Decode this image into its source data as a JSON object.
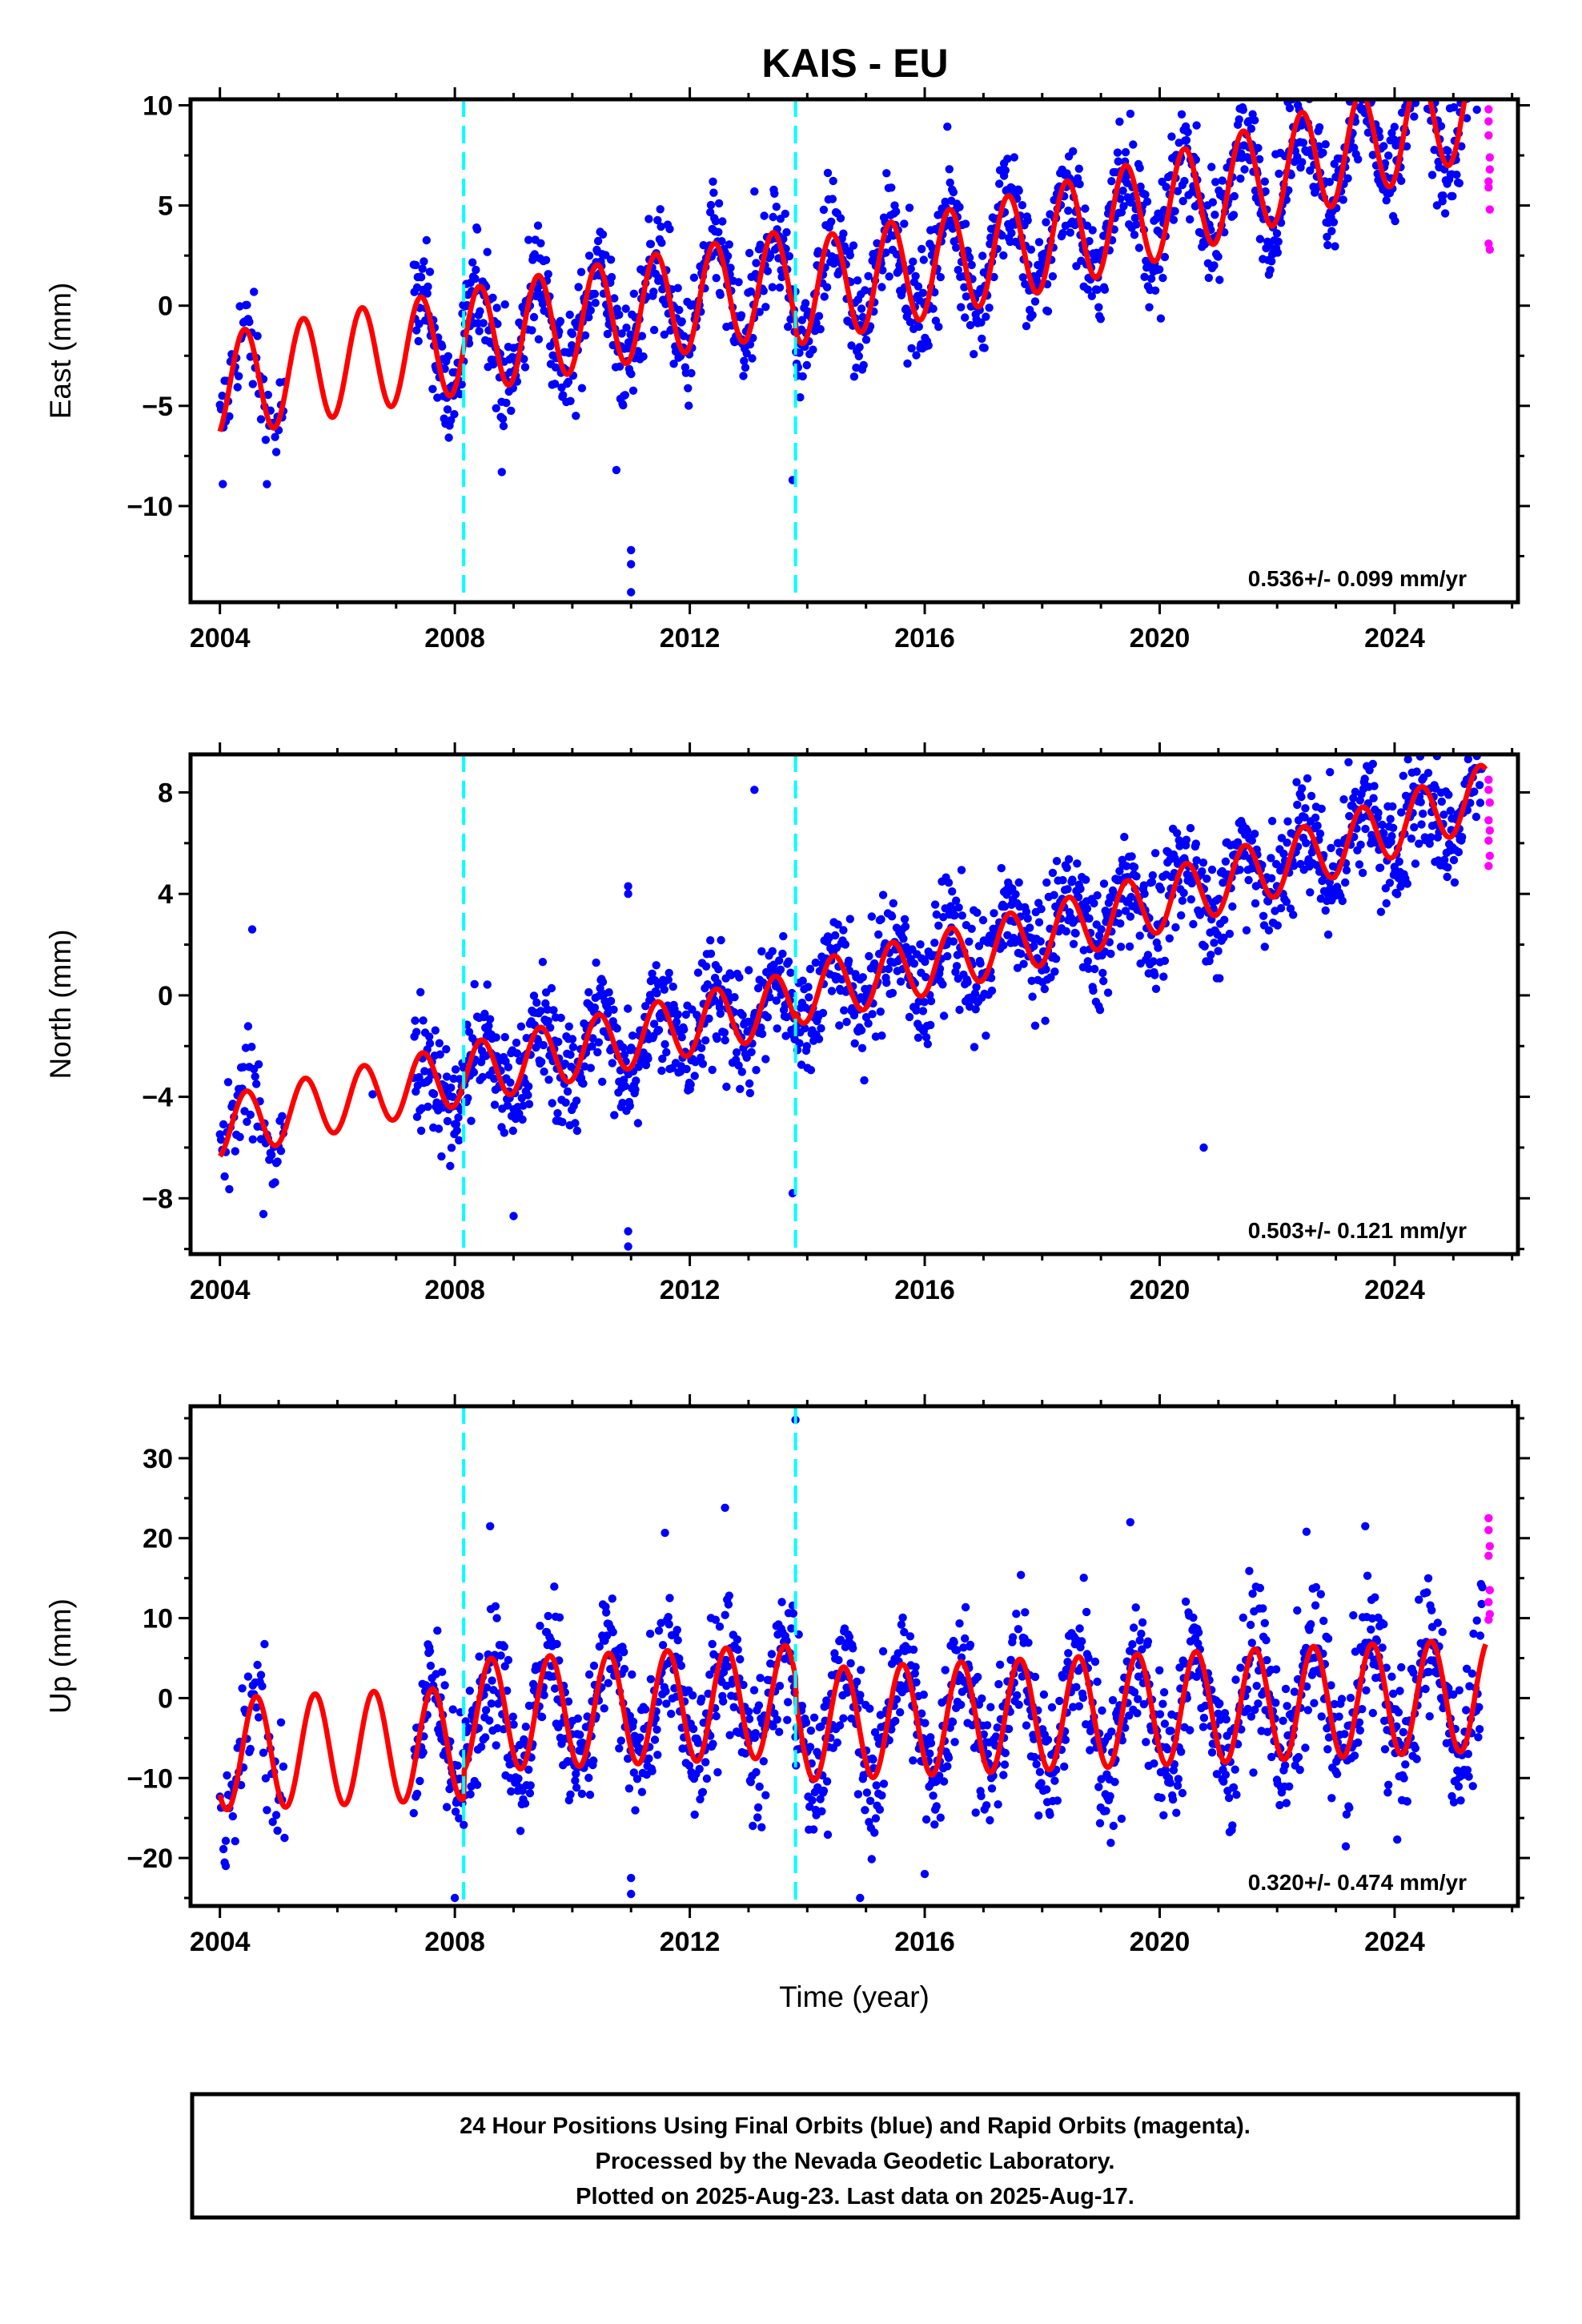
{
  "title": "KAIS - EU",
  "footer": {
    "lines": [
      "24 Hour Positions Using Final Orbits (blue) and Rapid Orbits (magenta).",
      "Processed by the Nevada Geodetic Laboratory.",
      "Plotted on 2025-Aug-23. Last data on 2025-Aug-17."
    ]
  },
  "colors": {
    "final_orbits": "#0000ff",
    "rapid_orbits": "#ff00ff",
    "model_fit": "#ff0000",
    "equipment_change": "#00ffff",
    "axes": "#000000"
  },
  "chart_data": [
    {
      "type": "scatter",
      "component": "East",
      "ylabel": "East (mm)",
      "xlabel": "",
      "xlim": [
        2003.5,
        2026.1
      ],
      "ylim": [
        -14.8,
        10.3
      ],
      "xticks": [
        2004,
        2008,
        2012,
        2016,
        2020,
        2024
      ],
      "yticks": [
        10,
        5,
        0,
        -5,
        -10
      ],
      "ytick_labels": [
        "10",
        "5",
        "0",
        "−5",
        "−10"
      ],
      "rate_label": "0.536+/- 0.099 mm/yr",
      "event_lines": [
        2008.15,
        2013.8
      ],
      "model": {
        "offset_at_2004": -4.0,
        "rate": 0.536,
        "annual_amplitude": 2.6,
        "annual_peak": 0.42,
        "late_extra_rate": 0.05,
        "steps": [
          {
            "x": 2013.8,
            "dy": -0.6
          }
        ]
      },
      "final_orbits": {
        "x_start": 2007.3,
        "x_end": 2025.5,
        "scatter": 1.3,
        "early_x_start": 2004.0,
        "early_x_end": 2005.1
      },
      "outliers": [
        [
          2004.05,
          -8.9
        ],
        [
          2011.0,
          -12.2
        ],
        [
          2011.0,
          -12.9
        ],
        [
          2011.0,
          -14.3
        ],
        [
          2010.75,
          -8.2
        ],
        [
          2013.1,
          5.7
        ],
        [
          2013.75,
          -8.7
        ],
        [
          2017.35,
          7.1
        ],
        [
          2008.8,
          -8.3
        ]
      ],
      "rapid_orbits": [
        [
          2025.6,
          9.8
        ],
        [
          2025.6,
          9.2
        ],
        [
          2025.6,
          8.5
        ],
        [
          2025.62,
          7.4
        ],
        [
          2025.62,
          6.8
        ],
        [
          2025.6,
          5.9
        ],
        [
          2025.62,
          4.8
        ],
        [
          2025.6,
          3.1
        ],
        [
          2025.62,
          2.8
        ],
        [
          2025.6,
          6.2
        ]
      ]
    },
    {
      "type": "scatter",
      "component": "North",
      "ylabel": "North (mm)",
      "xlabel": "",
      "xlim": [
        2003.5,
        2026.1
      ],
      "ylim": [
        -10.2,
        9.5
      ],
      "xticks": [
        2004,
        2008,
        2012,
        2016,
        2020,
        2024
      ],
      "yticks": [
        8,
        4,
        0,
        -4,
        -8
      ],
      "ytick_labels": [
        "8",
        "4",
        "0",
        "−4",
        "−8"
      ],
      "rate_label": "0.503+/- 0.121 mm/yr",
      "event_lines": [
        2008.15,
        2013.8
      ],
      "model": {
        "offset_at_2004": -5.2,
        "rate": 0.503,
        "annual_amplitude": 1.2,
        "annual_peak": 0.45,
        "late_extra_rate": 0.03,
        "steps": [
          {
            "x": 2013.8,
            "dy": 0.3
          }
        ]
      },
      "final_orbits": {
        "x_start": 2007.3,
        "x_end": 2025.5,
        "scatter": 1.1,
        "early_x_start": 2004.0,
        "early_x_end": 2005.1
      },
      "outliers": [
        [
          2004.55,
          2.6
        ],
        [
          2013.1,
          8.1
        ],
        [
          2010.95,
          4.3
        ],
        [
          2010.95,
          4.0
        ],
        [
          2010.95,
          -9.3
        ],
        [
          2010.95,
          -9.9
        ],
        [
          2020.75,
          -6.0
        ],
        [
          2013.75,
          -7.8
        ],
        [
          2022.9,
          8.8
        ],
        [
          2009.0,
          -8.7
        ],
        [
          2006.6,
          -3.9
        ]
      ],
      "rapid_orbits": [
        [
          2025.6,
          8.5
        ],
        [
          2025.6,
          8.1
        ],
        [
          2025.62,
          7.6
        ],
        [
          2025.6,
          6.9
        ],
        [
          2025.62,
          6.5
        ],
        [
          2025.6,
          6.1
        ],
        [
          2025.62,
          5.5
        ],
        [
          2025.6,
          5.1
        ]
      ]
    },
    {
      "type": "scatter",
      "component": "Up",
      "ylabel": "Up (mm)",
      "xlabel": "Time (year)",
      "xlim": [
        2003.5,
        2026.1
      ],
      "ylim": [
        -26,
        36.5
      ],
      "xticks": [
        2004,
        2008,
        2012,
        2016,
        2020,
        2024
      ],
      "yticks": [
        30,
        20,
        10,
        0,
        -10,
        -20
      ],
      "ytick_labels": [
        "30",
        "20",
        "10",
        "0",
        "−10",
        "−20"
      ],
      "rate_label": "0.320+/- 0.474 mm/yr",
      "event_lines": [
        2008.15,
        2013.8
      ],
      "model": {
        "offset_at_2004": -7.0,
        "rate": 0.32,
        "annual_amplitude": 7.0,
        "annual_peak": 0.62,
        "late_extra_rate": 0.0,
        "steps": [
          {
            "x": 2008.15,
            "dy": 3.5
          },
          {
            "x": 2013.8,
            "dy": -3.0
          }
        ]
      },
      "final_orbits": {
        "x_start": 2007.3,
        "x_end": 2025.5,
        "scatter": 4.0,
        "early_x_start": 2004.0,
        "early_x_end": 2005.1
      },
      "outliers": [
        [
          2013.8,
          34.8
        ],
        [
          2012.6,
          23.8
        ],
        [
          2008.6,
          21.5
        ],
        [
          2019.5,
          22.0
        ],
        [
          2008.0,
          -25.0
        ],
        [
          2011.0,
          -24.5
        ],
        [
          2011.0,
          -22.5
        ],
        [
          2014.9,
          -25.0
        ],
        [
          2016.0,
          -22.0
        ],
        [
          2004.1,
          -21.0
        ],
        [
          2023.5,
          21.5
        ],
        [
          2022.5,
          20.8
        ]
      ],
      "rapid_orbits": [
        [
          2025.6,
          22.5
        ],
        [
          2025.6,
          21.0
        ],
        [
          2025.62,
          19.0
        ],
        [
          2025.6,
          17.8
        ],
        [
          2025.62,
          13.5
        ],
        [
          2025.6,
          12.0
        ],
        [
          2025.62,
          10.5
        ],
        [
          2025.6,
          9.8
        ]
      ]
    }
  ]
}
